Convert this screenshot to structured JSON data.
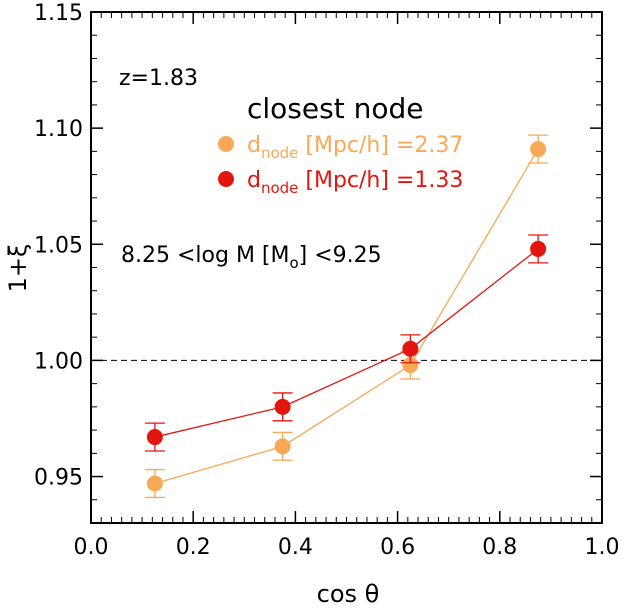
{
  "chart_data": {
    "type": "scatter",
    "xlabel": "cos θ",
    "ylabel": "1+ξ",
    "xlim": [
      0.0,
      1.0
    ],
    "ylim": [
      0.93,
      1.15
    ],
    "xticks": [
      0.0,
      0.2,
      0.4,
      0.6,
      0.8,
      1.0
    ],
    "xtick_labels": [
      "0.0",
      "0.2",
      "0.4",
      "0.6",
      "0.8",
      "1.0"
    ],
    "yticks": [
      0.95,
      1.0,
      1.05,
      1.1,
      1.15
    ],
    "ytick_labels": [
      "0.95",
      "1.00",
      "1.05",
      "1.10",
      "1.15"
    ],
    "reference_line": 1.0,
    "annotations": {
      "redshift": "z=1.83",
      "mass_prefix": "8.25 <log M [M",
      "mass_sub": "o",
      "mass_suffix": "] <9.25"
    },
    "legend": {
      "title": "closest node",
      "label_main": "d",
      "label_sub": "node"
    },
    "series": [
      {
        "name": "dnode [Mpc/h] =2.37",
        "unit_text": " [Mpc/h] =",
        "value_text": "2.37",
        "color": "#f9a855",
        "x": [
          0.125,
          0.375,
          0.625,
          0.875
        ],
        "y": [
          0.947,
          0.963,
          0.998,
          1.091
        ],
        "err": [
          0.006,
          0.006,
          0.006,
          0.006
        ]
      },
      {
        "name": "dnode [Mpc/h] =1.33",
        "unit_text": " [Mpc/h] =",
        "value_text": "1.33",
        "color": "#e3160f",
        "x": [
          0.125,
          0.375,
          0.625,
          0.875
        ],
        "y": [
          0.967,
          0.98,
          1.005,
          1.048
        ],
        "err": [
          0.006,
          0.006,
          0.006,
          0.006
        ]
      }
    ]
  }
}
